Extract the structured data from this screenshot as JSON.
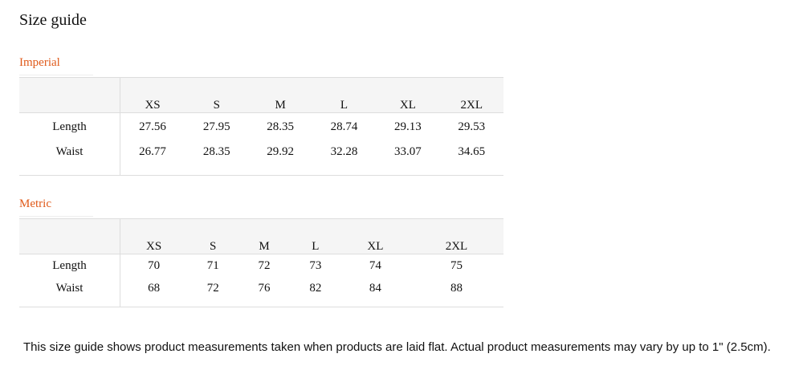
{
  "title": "Size guide",
  "sections": [
    {
      "label": "Imperial",
      "sizes": [
        "XS",
        "S",
        "M",
        "L",
        "XL",
        "2XL"
      ],
      "rows": [
        {
          "name": "Length",
          "values": [
            "27.56",
            "27.95",
            "28.35",
            "28.74",
            "29.13",
            "29.53"
          ]
        },
        {
          "name": "Waist",
          "values": [
            "26.77",
            "28.35",
            "29.92",
            "32.28",
            "33.07",
            "34.65"
          ]
        }
      ]
    },
    {
      "label": "Metric",
      "sizes": [
        "XS",
        "S",
        "M",
        "L",
        "XL",
        "2XL"
      ],
      "rows": [
        {
          "name": "Length",
          "values": [
            "70",
            "71",
            "72",
            "73",
            "74",
            "75"
          ]
        },
        {
          "name": "Waist",
          "values": [
            "68",
            "72",
            "76",
            "82",
            "84",
            "88"
          ]
        }
      ]
    }
  ],
  "note": "This size guide shows product measurements taken when products are laid flat. Actual product measurements may vary by up to 1\" (2.5cm)."
}
